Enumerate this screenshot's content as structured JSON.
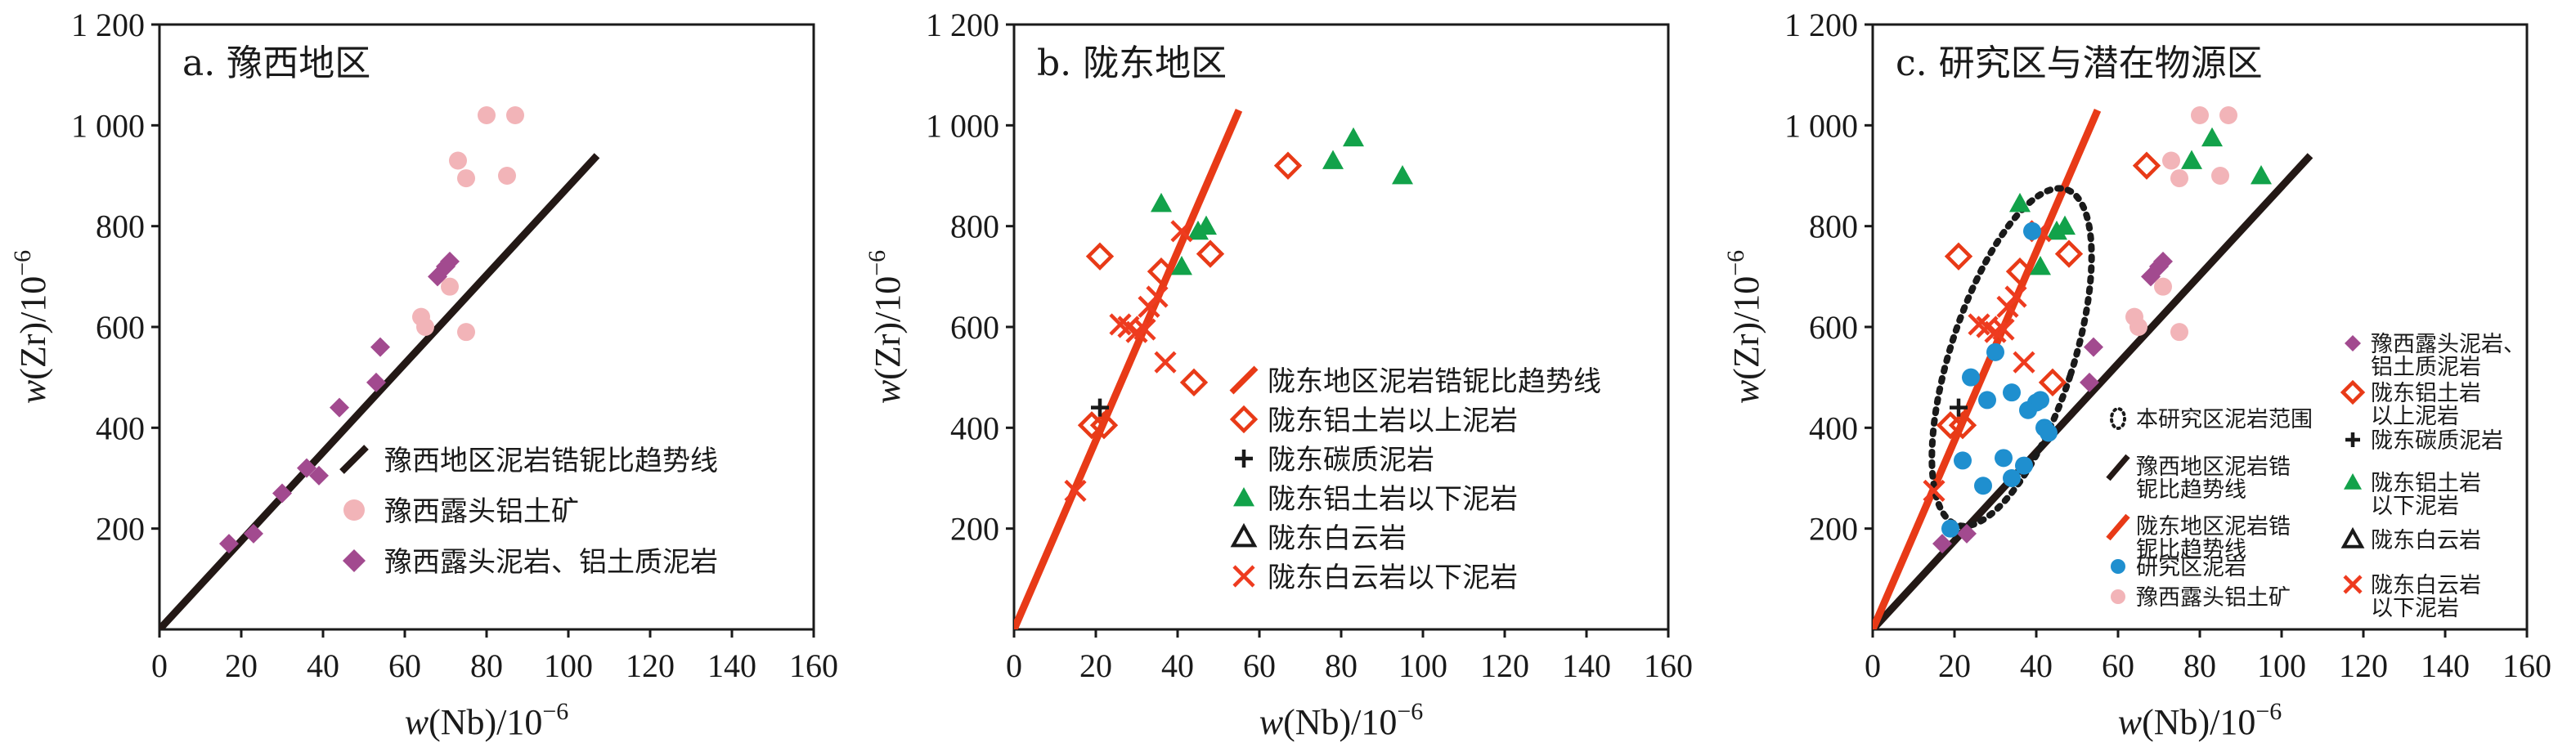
{
  "colors": {
    "axis": "#1a1a1a",
    "trend_black": "#231815",
    "trend_red": "#e83a17",
    "bauxite_pink": "#f2b4b8",
    "mudstone_purple": "#a24a8f",
    "above_red": "#e83a17",
    "carbon_black": "#1a1a1a",
    "below_green": "#12a24a",
    "dolomite_black": "#1a1a1a",
    "below_dol_red": "#ee3b1f",
    "study_blue": "#1f8fcf",
    "range_black": "#1a1a1a"
  },
  "chart_data": [
    {
      "type": "scatter",
      "title": "a. 豫西地区",
      "xlabel_italic": "w",
      "xlabel_rest": "(Nb)/10",
      "xlabel_sup": "−6",
      "ylabel_italic": "w",
      "ylabel_rest": "(Zr)/10",
      "ylabel_sup": "−6",
      "xlim": [
        0,
        160
      ],
      "ylim": [
        0,
        1200
      ],
      "xticks": [
        "0",
        "20",
        "40",
        "60",
        "80",
        "100",
        "120",
        "140",
        "160"
      ],
      "yticks": [
        "200",
        "400",
        "600",
        "800",
        "1 000",
        "1 200"
      ],
      "lines": [
        {
          "key": "trend_yx",
          "x": [
            0,
            107
          ],
          "y": [
            0,
            940
          ]
        }
      ],
      "series": [
        {
          "key": "bauxite",
          "marker": "circle",
          "points": [
            [
              64,
              620
            ],
            [
              65,
              600
            ],
            [
              71,
              680
            ],
            [
              73,
              930
            ],
            [
              75,
              895
            ],
            [
              75,
              590
            ],
            [
              80,
              1020
            ],
            [
              85,
              900
            ],
            [
              87,
              1020
            ]
          ]
        },
        {
          "key": "mudstone",
          "marker": "diamond",
          "points": [
            [
              17,
              170
            ],
            [
              23,
              190
            ],
            [
              30,
              270
            ],
            [
              36,
              320
            ],
            [
              39,
              305
            ],
            [
              44,
              440
            ],
            [
              53,
              490
            ],
            [
              54,
              560
            ],
            [
              68,
              700
            ],
            [
              70,
              720
            ],
            [
              71,
              730
            ]
          ]
        }
      ],
      "legend": {
        "position": "lower-right",
        "entries": [
          {
            "key": "trend_yx",
            "label": "豫西地区泥岩锆铌比趋势线"
          },
          {
            "key": "bauxite",
            "label": "豫西露头铝土矿"
          },
          {
            "key": "mudstone",
            "label": "豫西露头泥岩、铝土质泥岩"
          }
        ]
      }
    },
    {
      "type": "scatter",
      "title": "b. 陇东地区",
      "xlabel_italic": "w",
      "xlabel_rest": "(Nb)/10",
      "xlabel_sup": "−6",
      "ylabel_italic": "w",
      "ylabel_rest": "(Zr)/10",
      "ylabel_sup": "−6",
      "xlim": [
        0,
        160
      ],
      "ylim": [
        0,
        1200
      ],
      "xticks": [
        "0",
        "20",
        "40",
        "60",
        "80",
        "100",
        "120",
        "140",
        "160"
      ],
      "yticks": [
        "200",
        "400",
        "600",
        "800",
        "1 000",
        "1 200"
      ],
      "lines": [
        {
          "key": "trend_ld",
          "x": [
            0,
            55
          ],
          "y": [
            0,
            1030
          ]
        }
      ],
      "series": [
        {
          "key": "above",
          "marker": "diamond-open",
          "points": [
            [
              19,
              405
            ],
            [
              22,
              405
            ],
            [
              21,
              740
            ],
            [
              36,
              710
            ],
            [
              44,
              490
            ],
            [
              48,
              745
            ],
            [
              67,
              920
            ]
          ]
        },
        {
          "key": "carbon",
          "marker": "plus",
          "points": [
            [
              21,
              440
            ]
          ]
        },
        {
          "key": "below",
          "marker": "triangle",
          "points": [
            [
              36,
              845
            ],
            [
              41,
              720
            ],
            [
              45,
              790
            ],
            [
              47,
              800
            ],
            [
              78,
              930
            ],
            [
              83,
              975
            ],
            [
              95,
              900
            ]
          ]
        },
        {
          "key": "dolomite",
          "marker": "triangle-open",
          "points": []
        },
        {
          "key": "belowdol",
          "marker": "x",
          "points": [
            [
              15,
              275
            ],
            [
              26,
              605
            ],
            [
              28,
              600
            ],
            [
              30,
              590
            ],
            [
              32,
              595
            ],
            [
              33,
              640
            ],
            [
              35,
              660
            ],
            [
              37,
              530
            ],
            [
              41,
              790
            ]
          ]
        }
      ],
      "legend": {
        "position": "lower-right",
        "entries": [
          {
            "key": "trend_ld",
            "label": "陇东地区泥岩锆铌比趋势线"
          },
          {
            "key": "above",
            "label": "陇东铝土岩以上泥岩"
          },
          {
            "key": "carbon",
            "label": "陇东碳质泥岩"
          },
          {
            "key": "below",
            "label": "陇东铝土岩以下泥岩"
          },
          {
            "key": "dolomite",
            "label": "陇东白云岩"
          },
          {
            "key": "belowdol",
            "label": "陇东白云岩以下泥岩"
          }
        ]
      }
    },
    {
      "type": "scatter",
      "title": "c. 研究区与潜在物源区",
      "xlabel_italic": "w",
      "xlabel_rest": "(Nb)/10",
      "xlabel_sup": "−6",
      "ylabel_italic": "w",
      "ylabel_rest": "(Zr)/10",
      "ylabel_sup": "−6",
      "xlim": [
        0,
        160
      ],
      "ylim": [
        0,
        1200
      ],
      "xticks": [
        "0",
        "20",
        "40",
        "60",
        "80",
        "100",
        "120",
        "140",
        "160"
      ],
      "yticks": [
        "200",
        "400",
        "600",
        "800",
        "1 000",
        "1 200"
      ],
      "lines": [
        {
          "key": "trend_yx",
          "x": [
            0,
            107
          ],
          "y": [
            0,
            940
          ]
        },
        {
          "key": "trend_ld",
          "x": [
            0,
            55
          ],
          "y": [
            0,
            1030
          ]
        }
      ],
      "ellipse": {
        "cx": 34,
        "cy": 540,
        "rx_data": 15,
        "ry_data": 350,
        "angle_deg": 18
      },
      "series": [
        {
          "key": "mudstone",
          "marker": "diamond",
          "points": [
            [
              17,
              170
            ],
            [
              23,
              190
            ],
            [
              53,
              490
            ],
            [
              54,
              560
            ],
            [
              68,
              700
            ],
            [
              70,
              720
            ],
            [
              71,
              730
            ]
          ]
        },
        {
          "key": "above",
          "marker": "diamond-open",
          "points": [
            [
              19,
              405
            ],
            [
              22,
              405
            ],
            [
              21,
              740
            ],
            [
              36,
              710
            ],
            [
              44,
              490
            ],
            [
              48,
              745
            ],
            [
              67,
              920
            ]
          ]
        },
        {
          "key": "carbon",
          "marker": "plus",
          "points": [
            [
              21,
              440
            ]
          ]
        },
        {
          "key": "below",
          "marker": "triangle",
          "points": [
            [
              36,
              845
            ],
            [
              41,
              720
            ],
            [
              45,
              790
            ],
            [
              47,
              800
            ],
            [
              78,
              930
            ],
            [
              83,
              975
            ],
            [
              95,
              900
            ]
          ]
        },
        {
          "key": "dolomite",
          "marker": "triangle-open",
          "points": []
        },
        {
          "key": "belowdol",
          "marker": "x",
          "points": [
            [
              15,
              275
            ],
            [
              26,
              605
            ],
            [
              28,
              600
            ],
            [
              30,
              590
            ],
            [
              32,
              595
            ],
            [
              33,
              640
            ],
            [
              35,
              660
            ],
            [
              37,
              530
            ],
            [
              41,
              790
            ]
          ]
        },
        {
          "key": "study",
          "marker": "circle",
          "points": [
            [
              19,
              200
            ],
            [
              22,
              335
            ],
            [
              24,
              500
            ],
            [
              27,
              285
            ],
            [
              28,
              455
            ],
            [
              30,
              550
            ],
            [
              32,
              340
            ],
            [
              34,
              300
            ],
            [
              34,
              470
            ],
            [
              37,
              325
            ],
            [
              38,
              435
            ],
            [
              39,
              790
            ],
            [
              40,
              450
            ],
            [
              41,
              455
            ],
            [
              42,
              400
            ],
            [
              43,
              390
            ]
          ]
        },
        {
          "key": "bauxite",
          "marker": "circle",
          "points": [
            [
              64,
              620
            ],
            [
              65,
              600
            ],
            [
              71,
              680
            ],
            [
              73,
              930
            ],
            [
              75,
              895
            ],
            [
              75,
              590
            ],
            [
              80,
              1020
            ],
            [
              85,
              900
            ],
            [
              87,
              1020
            ]
          ]
        }
      ],
      "legend": {
        "position": "lower-right",
        "entries": [
          {
            "key": "mudstone",
            "lines": [
              "豫西露头泥岩、",
              "铝土质泥岩"
            ]
          },
          {
            "key": "range",
            "lines": [
              "本研究区泥岩范围"
            ]
          },
          {
            "key": "above",
            "lines": [
              "陇东铝土岩",
              "以上泥岩"
            ]
          },
          {
            "key": "trend_yx",
            "lines": [
              "豫西地区泥岩锆",
              "铌比趋势线"
            ]
          },
          {
            "key": "carbon",
            "lines": [
              "陇东碳质泥岩"
            ]
          },
          {
            "key": "trend_ld",
            "lines": [
              "陇东地区泥岩锆",
              "铌比趋势线"
            ]
          },
          {
            "key": "below",
            "lines": [
              "陇东铝土岩",
              "以下泥岩"
            ]
          },
          {
            "key": "study",
            "lines": [
              "研究区泥岩"
            ]
          },
          {
            "key": "dolomite",
            "lines": [
              "陇东白云岩"
            ]
          },
          {
            "key": "bauxite",
            "lines": [
              "豫西露头铝土矿"
            ]
          },
          {
            "key": "belowdol",
            "lines": [
              "陇东白云岩",
              "以下泥岩"
            ]
          }
        ]
      }
    }
  ]
}
